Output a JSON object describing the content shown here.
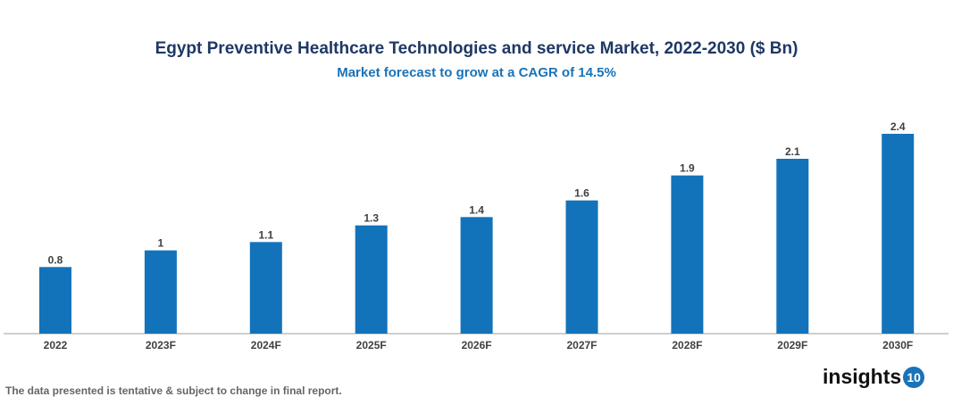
{
  "chart_data": {
    "type": "bar",
    "title": "Egypt Preventive Healthcare Technologies and service Market, 2022-2030 ($ Bn)",
    "subtitle": "Market forecast to grow at a CAGR of 14.5%",
    "categories": [
      "2022",
      "2023F",
      "2024F",
      "2025F",
      "2026F",
      "2027F",
      "2028F",
      "2029F",
      "2030F"
    ],
    "values": [
      0.8,
      1,
      1.1,
      1.3,
      1.4,
      1.6,
      1.9,
      2.1,
      2.4
    ],
    "value_labels": [
      "0.8",
      "1",
      "1.1",
      "1.3",
      "1.4",
      "1.6",
      "1.9",
      "2.1",
      "2.4"
    ],
    "xlabel": "",
    "ylabel": "",
    "ylim": [
      0,
      2.4
    ],
    "grid": false,
    "legend": "none",
    "bar_color": "#1273bb"
  },
  "footer": {
    "note": "The data presented is tentative & subject to change in final report."
  },
  "logo": {
    "text": "insights",
    "badge": "10"
  }
}
